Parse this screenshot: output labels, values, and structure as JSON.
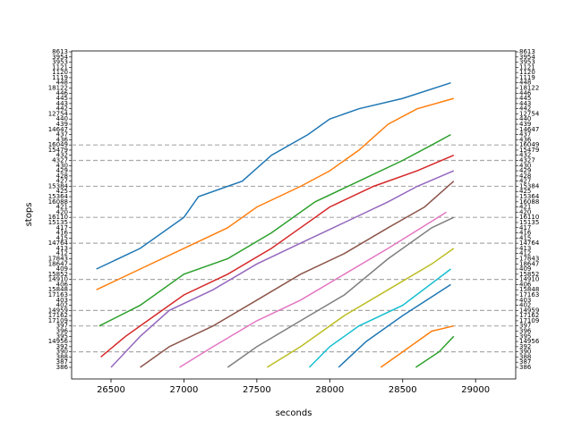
{
  "chart_data": {
    "type": "line",
    "xlabel": "seconds",
    "ylabel": "stops",
    "xlim": [
      26230,
      29275
    ],
    "xticks": [
      26500,
      27000,
      27500,
      28000,
      28500,
      29000
    ],
    "ycategories": [
      "386",
      "387",
      "388",
      "390",
      "392",
      "14956",
      "395",
      "396",
      "397",
      "17109",
      "17162",
      "14959",
      "402",
      "403",
      "17163",
      "15848",
      "406",
      "14910",
      "15852",
      "409",
      "18647",
      "17843",
      "412",
      "413",
      "14764",
      "415",
      "416",
      "417",
      "15135",
      "16110",
      "420",
      "421",
      "16088",
      "15364",
      "425",
      "15384",
      "427",
      "428",
      "429",
      "430",
      "4327",
      "432",
      "15479",
      "16049",
      "436",
      "437",
      "14647",
      "439",
      "440",
      "12754",
      "442",
      "443",
      "445",
      "446",
      "18122",
      "448",
      "1119",
      "1120",
      "1121",
      "3953",
      "3954",
      "8613"
    ],
    "hlines": [
      "16049",
      "4327",
      "15384",
      "16110",
      "14764",
      "14910",
      "14959",
      "397",
      "390"
    ],
    "series": [
      {
        "color": "#1f77b4",
        "x": [
          26400,
          26700,
          27000,
          27100,
          27400,
          27600,
          27850,
          28000,
          28200,
          28500,
          28830
        ],
        "y": [
          "409",
          "413",
          "16110",
          "15364",
          "427",
          "432",
          "437",
          "440",
          "442",
          "445",
          "448"
        ]
      },
      {
        "color": "#ff7f0e",
        "x": [
          26400,
          26700,
          27000,
          27300,
          27500,
          27800,
          28000,
          28200,
          28400,
          28600,
          28850
        ],
        "y": [
          "15848",
          "409",
          "413",
          "417",
          "421",
          "15384",
          "429",
          "15479",
          "439",
          "442",
          "445"
        ]
      },
      {
        "color": "#2ca02c",
        "x": [
          26420,
          26700,
          27000,
          27300,
          27600,
          27900,
          28200,
          28500,
          28700,
          28830
        ],
        "y": [
          "397",
          "402",
          "15852",
          "17843",
          "416",
          "16088",
          "427",
          "4327",
          "16049",
          "437"
        ]
      },
      {
        "color": "#d62728",
        "x": [
          26430,
          26600,
          26800,
          27000,
          27300,
          27600,
          27800,
          28000,
          28300,
          28600,
          28850
        ],
        "y": [
          "388",
          "395",
          "17162",
          "17163",
          "15852",
          "413",
          "417",
          "421",
          "15384",
          "429",
          "432"
        ]
      },
      {
        "color": "#9467bd",
        "x": [
          26500,
          26700,
          26900,
          27200,
          27500,
          27800,
          28100,
          28400,
          28600,
          28850
        ],
        "y": [
          "386",
          "395",
          "14959",
          "15848",
          "18647",
          "14764",
          "15135",
          "16088",
          "15384",
          "429"
        ]
      },
      {
        "color": "#8c564b",
        "x": [
          26700,
          26900,
          27200,
          27500,
          27800,
          28100,
          28400,
          28650,
          28850
        ],
        "y": [
          "386",
          "392",
          "397",
          "403",
          "15852",
          "412",
          "417",
          "421",
          "427"
        ]
      },
      {
        "color": "#e377c2",
        "x": [
          26970,
          27200,
          27500,
          27800,
          28100,
          28400,
          28800
        ],
        "y": [
          "386",
          "392",
          "17109",
          "403",
          "15852",
          "413",
          "420"
        ]
      },
      {
        "color": "#7f7f7f",
        "x": [
          27300,
          27500,
          27800,
          28100,
          28400,
          28700,
          28850
        ],
        "y": [
          "386",
          "392",
          "17109",
          "17163",
          "17843",
          "417",
          "16110"
        ]
      },
      {
        "color": "#bcbd22",
        "x": [
          27570,
          27800,
          28100,
          28400,
          28700,
          28850
        ],
        "y": [
          "386",
          "392",
          "17162",
          "15848",
          "18647",
          "413"
        ]
      },
      {
        "color": "#17becf",
        "x": [
          27860,
          28000,
          28200,
          28500,
          28830
        ],
        "y": [
          "386",
          "392",
          "397",
          "402",
          "409"
        ]
      },
      {
        "color": "#1f77b4",
        "x": [
          28060,
          28250,
          28500,
          28830
        ],
        "y": [
          "386",
          "14956",
          "17162",
          "406"
        ]
      },
      {
        "color": "#ff7f0e",
        "x": [
          28350,
          28500,
          28700,
          28850
        ],
        "y": [
          "386",
          "390",
          "396",
          "397"
        ]
      },
      {
        "color": "#2ca02c",
        "x": [
          28590,
          28750,
          28850
        ],
        "y": [
          "386",
          "390",
          "395"
        ]
      }
    ]
  }
}
